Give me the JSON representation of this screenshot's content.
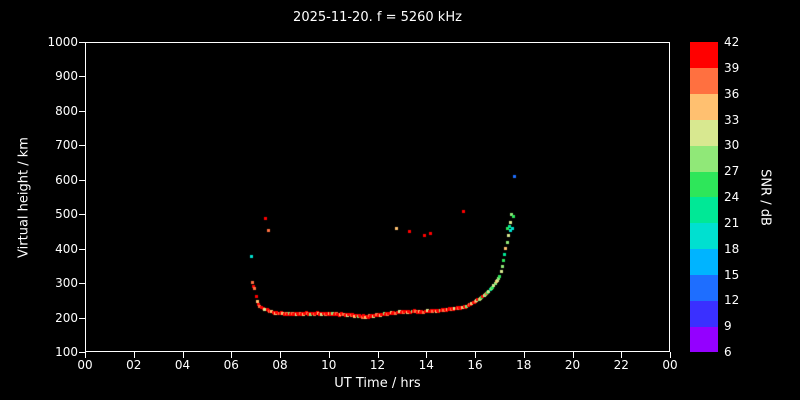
{
  "title": "2025-11-20. f = 5260 kHz",
  "chart_data": {
    "type": "scatter",
    "title": "2025-11-20. f = 5260 kHz",
    "xlabel": "UT Time / hrs",
    "ylabel": "Virtual height / km",
    "xlim": [
      0,
      24
    ],
    "ylim": [
      100,
      1000
    ],
    "x_ticks": [
      {
        "t": 0,
        "label": "00"
      },
      {
        "t": 2,
        "label": "02"
      },
      {
        "t": 4,
        "label": "04"
      },
      {
        "t": 6,
        "label": "06"
      },
      {
        "t": 8,
        "label": "08"
      },
      {
        "t": 10,
        "label": "10"
      },
      {
        "t": 12,
        "label": "12"
      },
      {
        "t": 14,
        "label": "14"
      },
      {
        "t": 16,
        "label": "16"
      },
      {
        "t": 18,
        "label": "18"
      },
      {
        "t": 20,
        "label": "20"
      },
      {
        "t": 22,
        "label": "22"
      },
      {
        "t": 24,
        "label": "00"
      }
    ],
    "y_ticks": [
      100,
      200,
      300,
      400,
      500,
      600,
      700,
      800,
      900,
      1000
    ],
    "background": "#000000",
    "grid": false,
    "legend": "none",
    "colorbar": {
      "label": "SNR / dB",
      "ticks": [
        6,
        9,
        12,
        15,
        18,
        21,
        24,
        27,
        30,
        33,
        36,
        39,
        42
      ],
      "colors": [
        "#9400ff",
        "#3a30ff",
        "#1e6eff",
        "#00b4ff",
        "#00e0d0",
        "#00e896",
        "#2ee65a",
        "#90e878",
        "#d8e890",
        "#ffc070",
        "#ff7040",
        "#ff0000"
      ]
    },
    "points_format": "[UT_hours, virtual_height_km, snr_dB]",
    "points": [
      [
        6.8,
        378,
        18
      ],
      [
        6.85,
        302,
        36
      ],
      [
        6.9,
        292,
        40
      ],
      [
        6.95,
        285,
        38
      ],
      [
        7.0,
        262,
        41
      ],
      [
        7.05,
        248,
        34
      ],
      [
        7.1,
        240,
        40
      ],
      [
        7.15,
        234,
        37
      ],
      [
        7.2,
        230,
        41
      ],
      [
        7.3,
        228,
        39
      ],
      [
        7.35,
        226,
        31
      ],
      [
        7.4,
        490,
        40
      ],
      [
        7.45,
        224,
        40
      ],
      [
        7.5,
        455,
        36
      ],
      [
        7.5,
        222,
        41
      ],
      [
        7.55,
        220,
        38
      ],
      [
        7.6,
        218,
        41
      ],
      [
        7.65,
        220,
        35
      ],
      [
        7.7,
        216,
        40
      ],
      [
        7.75,
        214,
        41
      ],
      [
        7.8,
        213,
        33
      ],
      [
        7.85,
        216,
        40
      ],
      [
        7.9,
        214,
        41
      ],
      [
        7.95,
        212,
        37
      ],
      [
        8.0,
        213,
        41
      ],
      [
        8.05,
        215,
        40
      ],
      [
        8.1,
        212,
        34
      ],
      [
        8.15,
        210,
        41
      ],
      [
        8.2,
        212,
        40
      ],
      [
        8.25,
        214,
        38
      ],
      [
        8.3,
        211,
        41
      ],
      [
        8.35,
        213,
        27
      ],
      [
        8.4,
        210,
        40
      ],
      [
        8.45,
        212,
        41
      ],
      [
        8.5,
        214,
        36
      ],
      [
        8.55,
        211,
        40
      ],
      [
        8.6,
        213,
        41
      ],
      [
        8.65,
        210,
        30
      ],
      [
        8.7,
        212,
        40
      ],
      [
        8.75,
        211,
        41
      ],
      [
        8.8,
        213,
        38
      ],
      [
        8.85,
        210,
        40
      ],
      [
        8.9,
        212,
        41
      ],
      [
        8.95,
        211,
        33
      ],
      [
        9.0,
        213,
        40
      ],
      [
        9.05,
        215,
        41
      ],
      [
        9.1,
        212,
        36
      ],
      [
        9.15,
        210,
        40
      ],
      [
        9.2,
        213,
        41
      ],
      [
        9.25,
        211,
        28
      ],
      [
        9.3,
        214,
        40
      ],
      [
        9.35,
        212,
        41
      ],
      [
        9.4,
        210,
        38
      ],
      [
        9.45,
        212,
        40
      ],
      [
        9.5,
        215,
        41
      ],
      [
        9.55,
        213,
        34
      ],
      [
        9.6,
        211,
        40
      ],
      [
        9.65,
        213,
        41
      ],
      [
        9.7,
        210,
        31
      ],
      [
        9.75,
        212,
        40
      ],
      [
        9.8,
        214,
        41
      ],
      [
        9.85,
        211,
        37
      ],
      [
        9.9,
        213,
        40
      ],
      [
        9.95,
        210,
        41
      ],
      [
        10.0,
        212,
        35
      ],
      [
        10.05,
        214,
        40
      ],
      [
        10.1,
        211,
        41
      ],
      [
        10.15,
        213,
        27
      ],
      [
        10.2,
        210,
        40
      ],
      [
        10.25,
        212,
        41
      ],
      [
        10.3,
        214,
        38
      ],
      [
        10.35,
        211,
        40
      ],
      [
        10.4,
        208,
        41
      ],
      [
        10.45,
        210,
        33
      ],
      [
        10.5,
        212,
        40
      ],
      [
        10.55,
        209,
        41
      ],
      [
        10.6,
        211,
        36
      ],
      [
        10.65,
        208,
        40
      ],
      [
        10.7,
        210,
        41
      ],
      [
        10.75,
        207,
        30
      ],
      [
        10.8,
        209,
        40
      ],
      [
        10.85,
        211,
        41
      ],
      [
        10.9,
        208,
        38
      ],
      [
        10.95,
        210,
        40
      ],
      [
        11.0,
        207,
        41
      ],
      [
        11.05,
        205,
        34
      ],
      [
        11.1,
        208,
        40
      ],
      [
        11.15,
        206,
        41
      ],
      [
        11.2,
        204,
        28
      ],
      [
        11.25,
        207,
        40
      ],
      [
        11.3,
        205,
        41
      ],
      [
        11.35,
        203,
        37
      ],
      [
        11.4,
        206,
        40
      ],
      [
        11.45,
        204,
        41
      ],
      [
        11.5,
        202,
        33
      ],
      [
        11.55,
        205,
        40
      ],
      [
        11.6,
        203,
        41
      ],
      [
        11.65,
        206,
        36
      ],
      [
        11.7,
        204,
        40
      ],
      [
        11.75,
        207,
        41
      ],
      [
        11.8,
        205,
        31
      ],
      [
        11.85,
        208,
        40
      ],
      [
        11.9,
        206,
        41
      ],
      [
        11.95,
        209,
        38
      ],
      [
        12.0,
        207,
        40
      ],
      [
        12.05,
        210,
        41
      ],
      [
        12.1,
        208,
        34
      ],
      [
        12.15,
        211,
        40
      ],
      [
        12.2,
        209,
        41
      ],
      [
        12.25,
        212,
        27
      ],
      [
        12.3,
        210,
        40
      ],
      [
        12.35,
        213,
        41
      ],
      [
        12.4,
        211,
        37
      ],
      [
        12.45,
        214,
        40
      ],
      [
        12.5,
        212,
        41
      ],
      [
        12.55,
        215,
        33
      ],
      [
        12.6,
        213,
        40
      ],
      [
        12.65,
        216,
        41
      ],
      [
        12.7,
        214,
        36
      ],
      [
        12.75,
        460,
        33
      ],
      [
        12.8,
        217,
        40
      ],
      [
        12.85,
        215,
        41
      ],
      [
        12.9,
        218,
        30
      ],
      [
        12.95,
        216,
        40
      ],
      [
        13.0,
        219,
        41
      ],
      [
        13.05,
        217,
        38
      ],
      [
        13.1,
        220,
        40
      ],
      [
        13.15,
        218,
        41
      ],
      [
        13.2,
        216,
        34
      ],
      [
        13.25,
        219,
        40
      ],
      [
        13.3,
        450,
        40
      ],
      [
        13.35,
        217,
        41
      ],
      [
        13.4,
        220,
        28
      ],
      [
        13.45,
        218,
        40
      ],
      [
        13.5,
        221,
        41
      ],
      [
        13.55,
        219,
        37
      ],
      [
        13.6,
        217,
        40
      ],
      [
        13.65,
        220,
        41
      ],
      [
        13.7,
        218,
        33
      ],
      [
        13.75,
        216,
        40
      ],
      [
        13.8,
        219,
        41
      ],
      [
        13.85,
        217,
        36
      ],
      [
        13.9,
        440,
        39
      ],
      [
        13.95,
        220,
        40
      ],
      [
        14.0,
        218,
        41
      ],
      [
        14.05,
        221,
        31
      ],
      [
        14.1,
        219,
        40
      ],
      [
        14.15,
        445,
        41
      ],
      [
        14.2,
        222,
        40
      ],
      [
        14.25,
        220,
        38
      ],
      [
        14.3,
        223,
        40
      ],
      [
        14.35,
        221,
        41
      ],
      [
        14.4,
        219,
        34
      ],
      [
        14.45,
        222,
        40
      ],
      [
        14.5,
        220,
        41
      ],
      [
        14.55,
        223,
        27
      ],
      [
        14.6,
        221,
        40
      ],
      [
        14.65,
        224,
        41
      ],
      [
        14.7,
        222,
        37
      ],
      [
        14.75,
        225,
        40
      ],
      [
        14.8,
        223,
        41
      ],
      [
        14.85,
        226,
        33
      ],
      [
        14.9,
        224,
        40
      ],
      [
        14.95,
        227,
        41
      ],
      [
        15.0,
        225,
        36
      ],
      [
        15.05,
        228,
        40
      ],
      [
        15.1,
        226,
        41
      ],
      [
        15.15,
        229,
        30
      ],
      [
        15.2,
        227,
        40
      ],
      [
        15.25,
        230,
        41
      ],
      [
        15.3,
        228,
        38
      ],
      [
        15.35,
        231,
        40
      ],
      [
        15.4,
        229,
        41
      ],
      [
        15.45,
        232,
        34
      ],
      [
        15.5,
        510,
        41
      ],
      [
        15.55,
        233,
        40
      ],
      [
        15.6,
        231,
        41
      ],
      [
        15.65,
        234,
        28
      ],
      [
        15.7,
        236,
        40
      ],
      [
        15.75,
        238,
        37
      ],
      [
        15.8,
        240,
        40
      ],
      [
        15.85,
        242,
        33
      ],
      [
        15.9,
        244,
        40
      ],
      [
        15.95,
        246,
        41
      ],
      [
        16.0,
        248,
        36
      ],
      [
        16.05,
        250,
        30
      ],
      [
        16.1,
        253,
        40
      ],
      [
        16.15,
        255,
        27
      ],
      [
        16.2,
        258,
        34
      ],
      [
        16.25,
        260,
        24
      ],
      [
        16.3,
        263,
        40
      ],
      [
        16.35,
        265,
        30
      ],
      [
        16.4,
        268,
        27
      ],
      [
        16.45,
        271,
        36
      ],
      [
        16.5,
        275,
        24
      ],
      [
        16.55,
        278,
        30
      ],
      [
        16.6,
        282,
        21
      ],
      [
        16.65,
        286,
        27
      ],
      [
        16.7,
        290,
        24
      ],
      [
        16.75,
        295,
        30
      ],
      [
        16.8,
        300,
        27
      ],
      [
        16.85,
        305,
        33
      ],
      [
        16.9,
        310,
        30
      ],
      [
        16.95,
        316,
        27
      ],
      [
        17.0,
        322,
        24
      ],
      [
        17.05,
        335,
        30
      ],
      [
        17.1,
        350,
        27
      ],
      [
        17.15,
        368,
        24
      ],
      [
        17.2,
        385,
        21
      ],
      [
        17.25,
        402,
        33
      ],
      [
        17.3,
        420,
        27
      ],
      [
        17.33,
        460,
        24
      ],
      [
        17.36,
        440,
        30
      ],
      [
        17.4,
        465,
        21
      ],
      [
        17.42,
        455,
        18
      ],
      [
        17.45,
        478,
        30
      ],
      [
        17.48,
        500,
        27
      ],
      [
        17.5,
        460,
        18
      ],
      [
        17.55,
        495,
        24
      ],
      [
        17.6,
        610,
        12
      ]
    ]
  }
}
